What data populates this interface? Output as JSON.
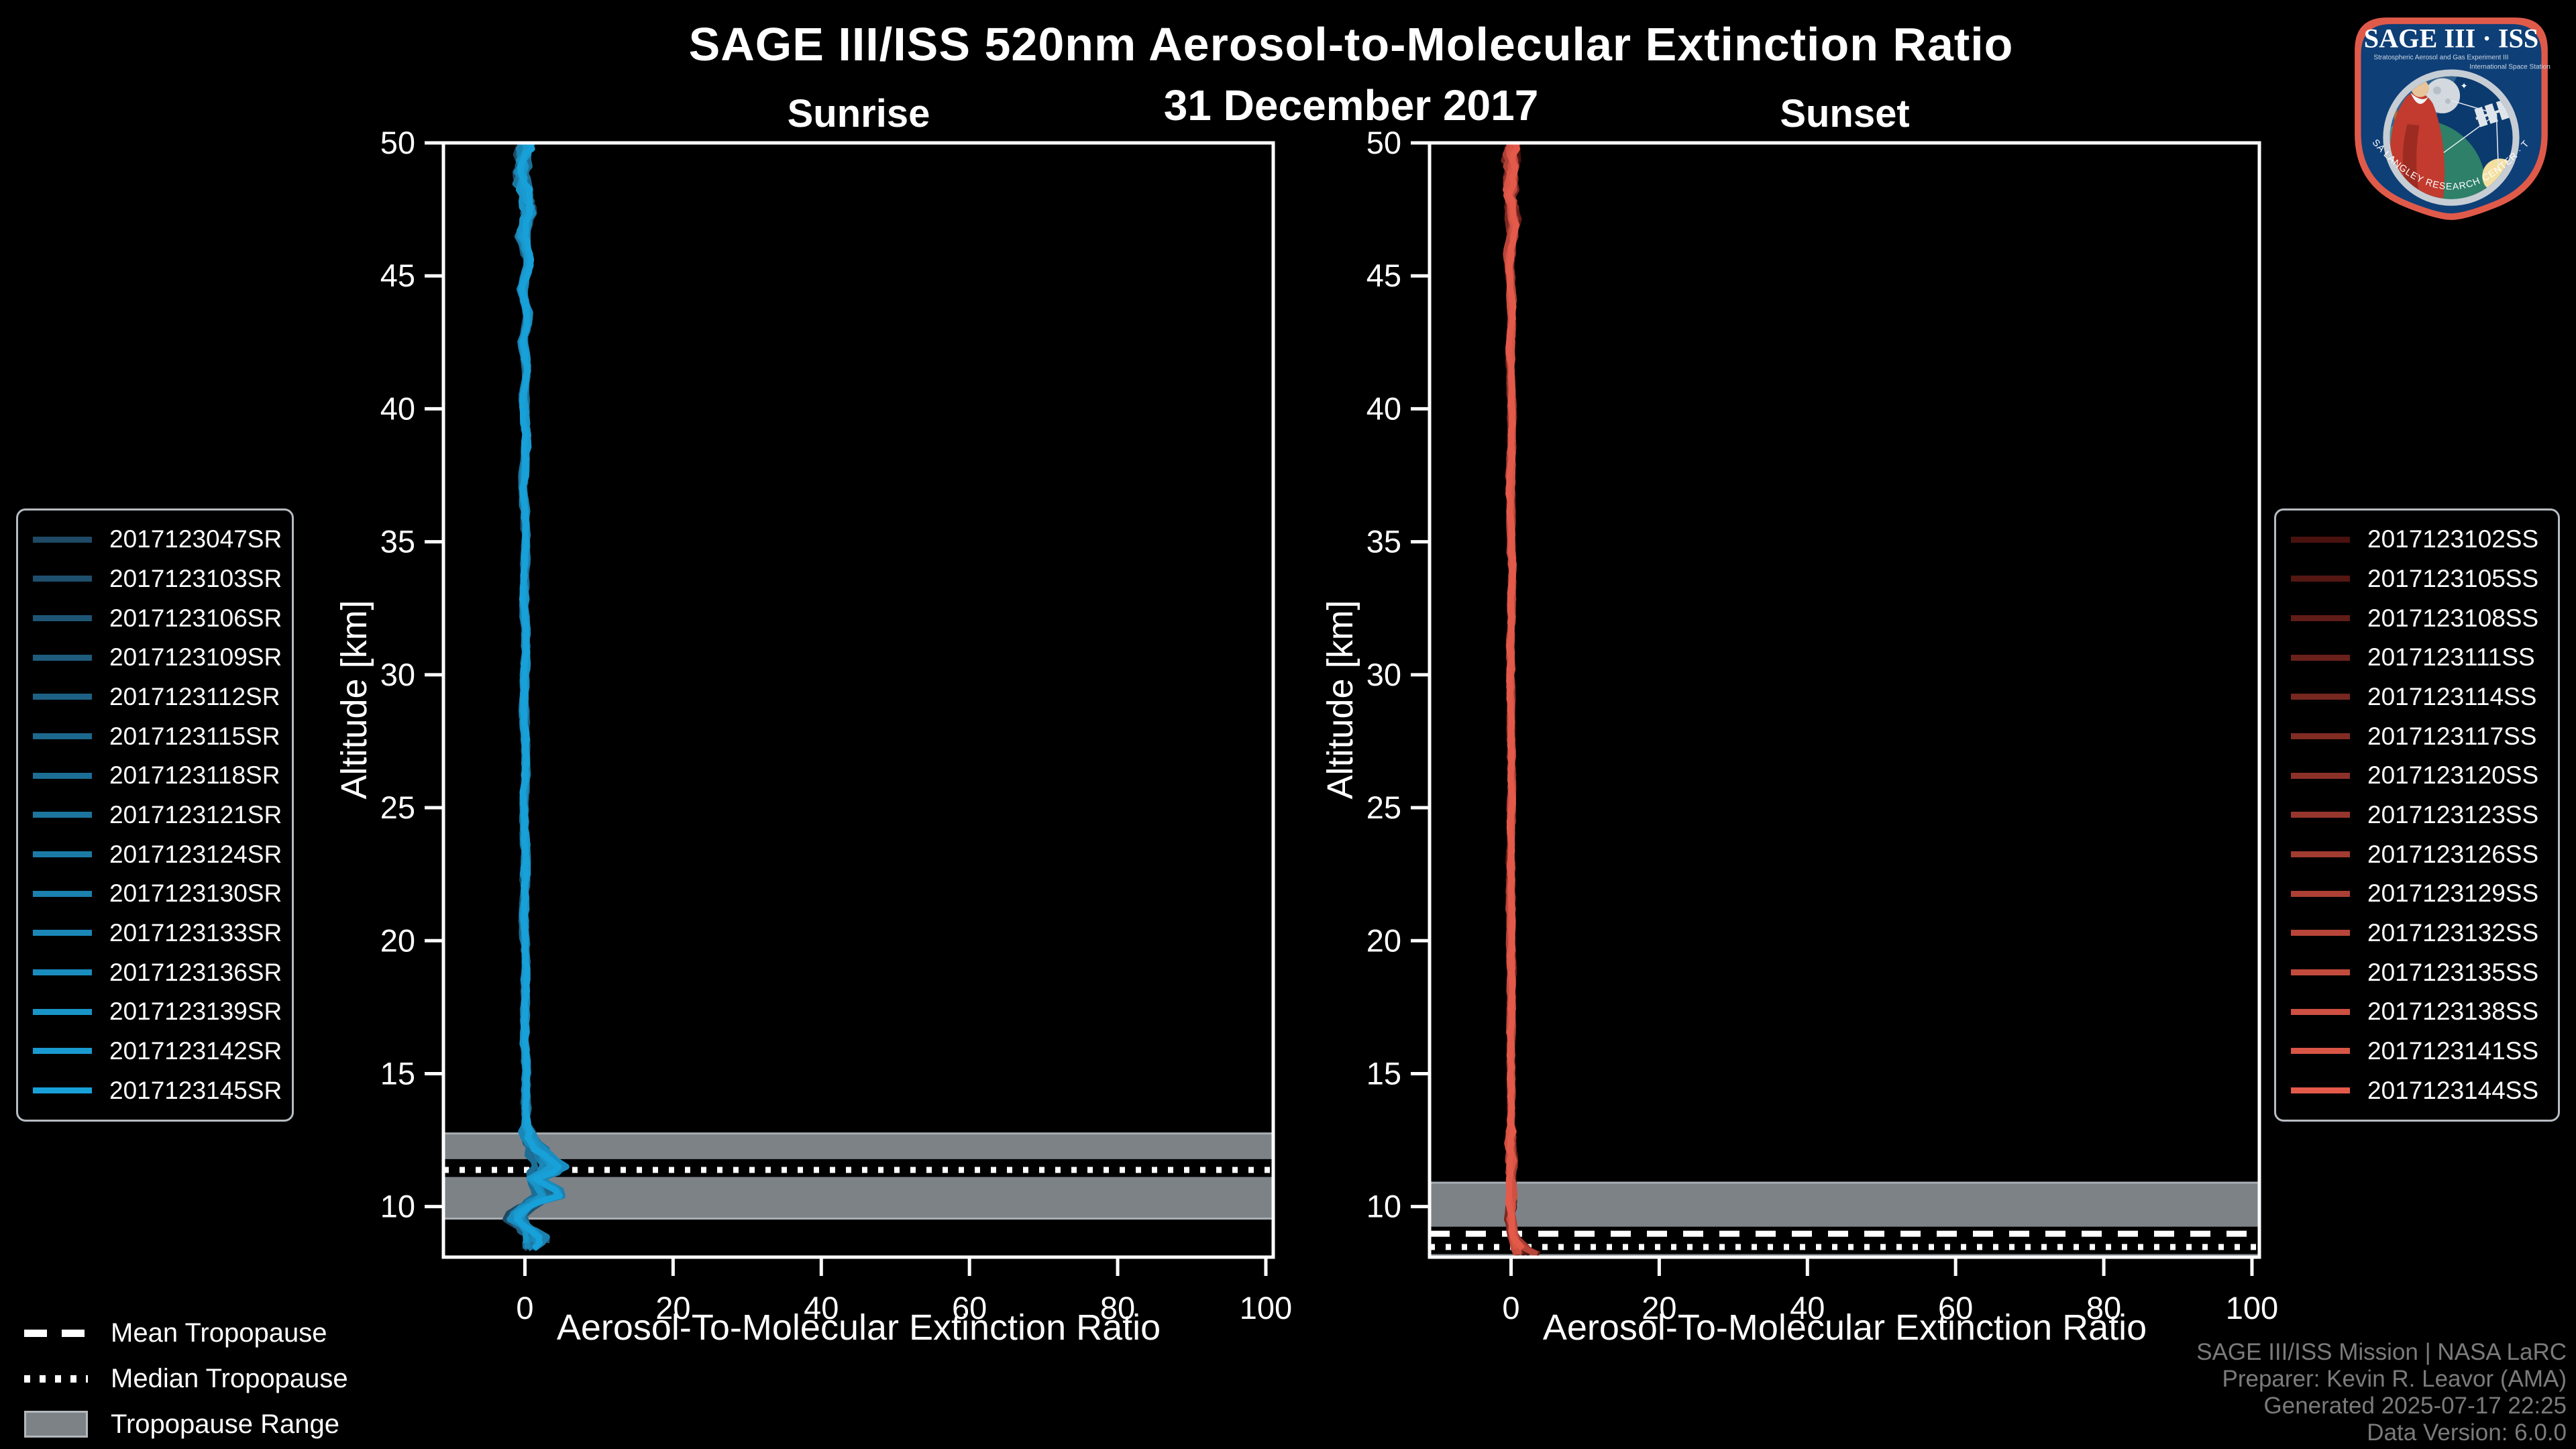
{
  "header": {
    "title": "SAGE III/ISS 520nm Aerosol-to-Molecular Extinction Ratio",
    "date": "31 December 2017"
  },
  "colors": {
    "background": "#000000",
    "foreground": "#ffffff",
    "band": "#7d8287",
    "band_edge": "#a9aeb4",
    "footer_text": "#7b7b7b",
    "sunrise_bright": "#18a0d8",
    "sunset_bright": "#e45a4a"
  },
  "chart_data": [
    {
      "type": "line",
      "id": "sunrise",
      "title": "Sunrise",
      "xlabel": "Aerosol-To-Molecular Extinction Ratio",
      "ylabel": "Altitude [km]",
      "xlim": [
        -11,
        101
      ],
      "ylim": [
        8.1,
        50
      ],
      "xticks": [
        0,
        20,
        40,
        60,
        80,
        100
      ],
      "yticks": [
        10,
        15,
        20,
        25,
        30,
        35,
        40,
        45,
        50
      ],
      "grid": false,
      "legend_position": "outside-left",
      "tropopause": {
        "range": [
          9.55,
          12.75
        ],
        "mean": 11.52,
        "median": 11.38
      },
      "profile_end_alt": 8.35,
      "noise": [
        0.35,
        0.22,
        0.85
      ],
      "profile_keypoints": [
        [
          50,
          0.3
        ],
        [
          48.5,
          -0.5
        ],
        [
          47.5,
          0.8
        ],
        [
          46.5,
          -0.5
        ],
        [
          45.5,
          0.6
        ],
        [
          44.5,
          -0.4
        ],
        [
          43.5,
          0.5
        ],
        [
          42.5,
          -0.35
        ],
        [
          41.5,
          0.4
        ],
        [
          40.5,
          -0.3
        ],
        [
          39,
          0.3
        ],
        [
          37,
          -0.25
        ],
        [
          35,
          0.25
        ],
        [
          33,
          -0.2
        ],
        [
          31,
          0.2
        ],
        [
          29,
          -0.18
        ],
        [
          27,
          0.18
        ],
        [
          25,
          -0.15
        ],
        [
          23,
          0.15
        ],
        [
          21,
          -0.15
        ],
        [
          19,
          0.15
        ],
        [
          17,
          -0.12
        ],
        [
          15.5,
          0.15
        ],
        [
          14,
          0.12
        ],
        [
          13,
          0.25
        ],
        [
          12.4,
          0.7
        ],
        [
          11.9,
          2.6
        ],
        [
          11.4,
          4.3
        ],
        [
          11.05,
          1.2
        ],
        [
          10.75,
          3.2
        ],
        [
          10.45,
          4.6
        ],
        [
          10.1,
          0.6
        ],
        [
          9.8,
          -1.1
        ],
        [
          9.5,
          -1.9
        ],
        [
          9.1,
          0.6
        ],
        [
          8.8,
          1.9
        ],
        [
          8.5,
          0.9
        ],
        [
          8.35,
          0.2
        ]
      ],
      "series": [
        {
          "name": "2017123047SR",
          "color": "#1f4964"
        },
        {
          "name": "2017123103SR",
          "color": "#1e4f6c"
        },
        {
          "name": "2017123106SR",
          "color": "#1e5575"
        },
        {
          "name": "2017123109SR",
          "color": "#1e5c7d"
        },
        {
          "name": "2017123112SR",
          "color": "#1d6285"
        },
        {
          "name": "2017123115SR",
          "color": "#1d688d"
        },
        {
          "name": "2017123118SR",
          "color": "#1c6e96"
        },
        {
          "name": "2017123121SR",
          "color": "#1c759e"
        },
        {
          "name": "2017123124SR",
          "color": "#1b7ba6"
        },
        {
          "name": "2017123130SR",
          "color": "#1b81af"
        },
        {
          "name": "2017123133SR",
          "color": "#1a87b7"
        },
        {
          "name": "2017123136SR",
          "color": "#1a8dbf"
        },
        {
          "name": "2017123139SR",
          "color": "#1994c7"
        },
        {
          "name": "2017123142SR",
          "color": "#199ad0"
        },
        {
          "name": "2017123145SR",
          "color": "#18a0d8"
        }
      ]
    },
    {
      "type": "line",
      "id": "sunset",
      "title": "Sunset",
      "xlabel": "Aerosol-To-Molecular Extinction Ratio",
      "ylabel": "Altitude [km]",
      "xlim": [
        -11,
        101
      ],
      "ylim": [
        8.1,
        50
      ],
      "xticks": [
        0,
        20,
        40,
        60,
        80,
        100
      ],
      "yticks": [
        10,
        15,
        20,
        25,
        30,
        35,
        40,
        45,
        50
      ],
      "grid": false,
      "legend_position": "outside-right",
      "tropopause": {
        "range": [
          8.12,
          10.9
        ],
        "mean": 8.98,
        "median": 8.48
      },
      "profile_end_alt": 8.16,
      "noise": [
        0.3,
        0.18,
        0.3
      ],
      "profile_keypoints": [
        [
          50,
          0.3
        ],
        [
          48.5,
          -0.4
        ],
        [
          47,
          0.5
        ],
        [
          45.5,
          -0.3
        ],
        [
          44,
          0.3
        ],
        [
          42,
          -0.2
        ],
        [
          40,
          0.2
        ],
        [
          37,
          -0.15
        ],
        [
          34,
          0.15
        ],
        [
          30,
          -0.12
        ],
        [
          26,
          0.12
        ],
        [
          22,
          -0.1
        ],
        [
          18,
          0.1
        ],
        [
          14,
          -0.1
        ],
        [
          11,
          0.12
        ],
        [
          10,
          0.15
        ],
        [
          9.3,
          0.25
        ],
        [
          8.8,
          0.6
        ],
        [
          8.5,
          1.4
        ],
        [
          8.3,
          2.6
        ],
        [
          8.15,
          3.4
        ]
      ],
      "series": [
        {
          "name": "2017123102SS",
          "color": "#4a120e"
        },
        {
          "name": "2017123105SS",
          "color": "#551712"
        },
        {
          "name": "2017123108SS",
          "color": "#601c17"
        },
        {
          "name": "2017123111SS",
          "color": "#6b211b"
        },
        {
          "name": "2017123114SS",
          "color": "#762720"
        },
        {
          "name": "2017123117SS",
          "color": "#812c23"
        },
        {
          "name": "2017123120SS",
          "color": "#8c3128"
        },
        {
          "name": "2017123123SS",
          "color": "#97362c"
        },
        {
          "name": "2017123126SS",
          "color": "#a23b30"
        },
        {
          "name": "2017123129SS",
          "color": "#ad4035"
        },
        {
          "name": "2017123132SS",
          "color": "#b84539"
        },
        {
          "name": "2017123135SS",
          "color": "#c34b3d"
        },
        {
          "name": "2017123138SS",
          "color": "#ce5042"
        },
        {
          "name": "2017123141SS",
          "color": "#d95546"
        },
        {
          "name": "2017123144SS",
          "color": "#e45a4a"
        }
      ]
    }
  ],
  "tropopause_legend": [
    {
      "label": "Mean Tropopause",
      "style": "dashed"
    },
    {
      "label": "Median Tropopause",
      "style": "dotted"
    },
    {
      "label": "Tropopause Range",
      "style": "band"
    }
  ],
  "footer": {
    "lines": [
      "SAGE III/ISS Mission | NASA LaRC",
      "Preparer: Kevin R. Leavor (AMA)",
      "Generated 2025-07-17 22:25",
      "Data Version: 6.0.0"
    ]
  },
  "logo": {
    "title": "SAGE III · ISS",
    "subtitle_left": "Stratospheric Aerosol and Gas Experiment III",
    "subtitle_right": "International Space Station",
    "ring_text": "BALL · NASA LANGLEY RESEARCH CENTER · TAS-I · ESA"
  }
}
